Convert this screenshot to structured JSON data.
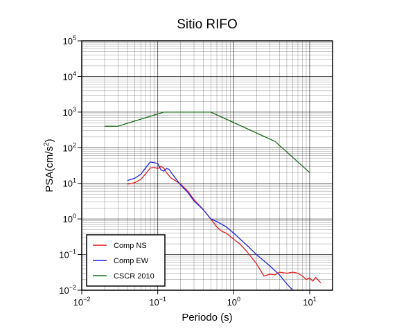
{
  "chart_data": {
    "type": "line",
    "title": "Sitio RIFO",
    "xlabel": "Periodo (s)",
    "ylabel": "PSA(cm/s²)",
    "ylabel_base": "PSA(cm/s",
    "ylabel_sup": "2",
    "ylabel_tail": ")",
    "xscale": "log",
    "yscale": "log",
    "xlim": [
      0.01,
      20
    ],
    "ylim": [
      0.01,
      100000
    ],
    "grid": true,
    "legend_position": "bottom-left",
    "x_ticks": [
      {
        "base": "10",
        "exp": "−2",
        "value": 0.01
      },
      {
        "base": "10",
        "exp": "−1",
        "value": 0.1
      },
      {
        "base": "10",
        "exp": "0",
        "value": 1
      },
      {
        "base": "10",
        "exp": "1",
        "value": 10
      }
    ],
    "y_ticks": [
      {
        "base": "10",
        "exp": "−2",
        "value": 0.01
      },
      {
        "base": "10",
        "exp": "−1",
        "value": 0.1
      },
      {
        "base": "10",
        "exp": "0",
        "value": 1
      },
      {
        "base": "10",
        "exp": "1",
        "value": 10
      },
      {
        "base": "10",
        "exp": "2",
        "value": 100
      },
      {
        "base": "10",
        "exp": "3",
        "value": 1000
      },
      {
        "base": "10",
        "exp": "4",
        "value": 10000
      },
      {
        "base": "10",
        "exp": "5",
        "value": 100000
      }
    ],
    "series": [
      {
        "name": "Comp NS",
        "color": "#e31a1c",
        "points": [
          [
            0.04,
            9.5
          ],
          [
            0.05,
            10.5
          ],
          [
            0.06,
            13
          ],
          [
            0.07,
            19
          ],
          [
            0.08,
            27
          ],
          [
            0.09,
            28
          ],
          [
            0.1,
            26
          ],
          [
            0.11,
            30
          ],
          [
            0.12,
            27
          ],
          [
            0.13,
            20
          ],
          [
            0.15,
            14
          ],
          [
            0.17,
            12
          ],
          [
            0.2,
            9.5
          ],
          [
            0.25,
            6
          ],
          [
            0.3,
            3.5
          ],
          [
            0.4,
            1.8
          ],
          [
            0.5,
            1.0
          ],
          [
            0.6,
            0.6
          ],
          [
            0.7,
            0.45
          ],
          [
            0.8,
            0.4
          ],
          [
            1.0,
            0.27
          ],
          [
            1.2,
            0.2
          ],
          [
            1.5,
            0.12
          ],
          [
            2.0,
            0.055
          ],
          [
            2.5,
            0.025
          ],
          [
            3.0,
            0.028
          ],
          [
            3.5,
            0.027
          ],
          [
            4.0,
            0.032
          ],
          [
            5.0,
            0.03
          ],
          [
            6.0,
            0.032
          ],
          [
            7.0,
            0.03
          ],
          [
            8.0,
            0.025
          ],
          [
            9.0,
            0.02
          ],
          [
            10.0,
            0.022
          ],
          [
            11.0,
            0.018
          ],
          [
            12.0,
            0.023
          ],
          [
            13.0,
            0.019
          ],
          [
            14.0,
            0.016
          ]
        ]
      },
      {
        "name": "Comp EW",
        "color": "#1f1fe0",
        "points": [
          [
            0.04,
            12
          ],
          [
            0.05,
            14
          ],
          [
            0.06,
            18
          ],
          [
            0.07,
            28
          ],
          [
            0.08,
            40
          ],
          [
            0.09,
            38
          ],
          [
            0.1,
            36
          ],
          [
            0.11,
            24
          ],
          [
            0.12,
            22
          ],
          [
            0.13,
            26
          ],
          [
            0.14,
            25
          ],
          [
            0.16,
            17
          ],
          [
            0.2,
            9
          ],
          [
            0.25,
            5.5
          ],
          [
            0.3,
            3.2
          ],
          [
            0.4,
            1.8
          ],
          [
            0.5,
            1.0
          ],
          [
            0.6,
            0.85
          ],
          [
            0.8,
            0.6
          ],
          [
            1.0,
            0.4
          ],
          [
            1.2,
            0.28
          ],
          [
            1.5,
            0.18
          ],
          [
            2.0,
            0.1
          ],
          [
            3.0,
            0.048
          ],
          [
            4.0,
            0.027
          ],
          [
            5.0,
            0.015
          ],
          [
            6.0,
            0.01
          ]
        ]
      },
      {
        "name": "CSCR 2010",
        "color": "#1a6b1a",
        "points": [
          [
            0.02,
            400
          ],
          [
            0.03,
            400
          ],
          [
            0.12,
            1000
          ],
          [
            0.5,
            1000
          ],
          [
            3.5,
            150
          ],
          [
            10.0,
            20
          ]
        ]
      }
    ]
  }
}
